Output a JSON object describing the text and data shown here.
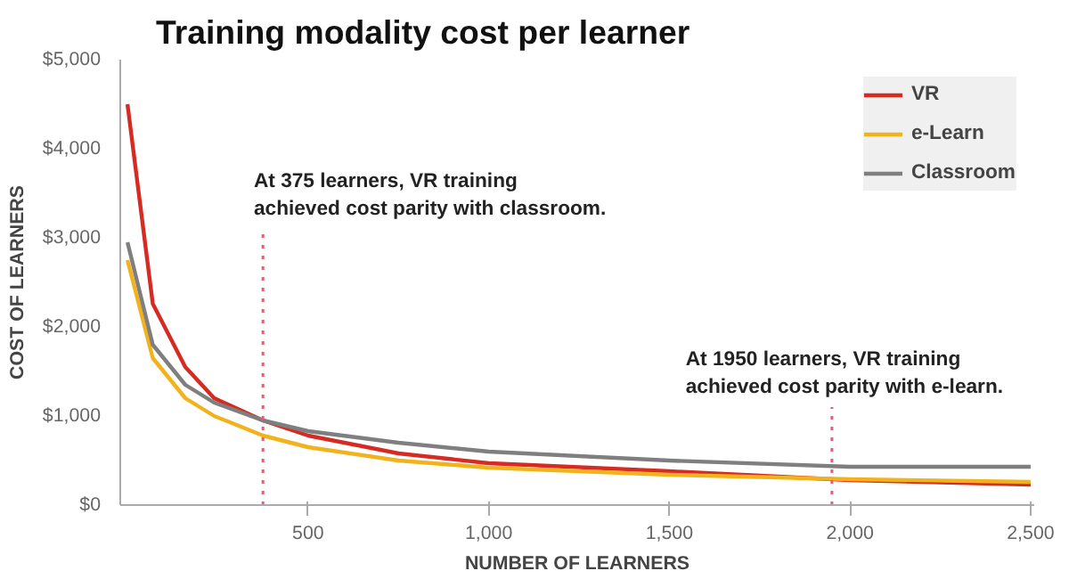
{
  "chart_data": {
    "type": "line",
    "title": "Training modality cost per learner",
    "xlabel": "NUMBER OF LEARNERS",
    "ylabel": "COST OF LEARNERS",
    "xlim": [
      -20,
      2510
    ],
    "xticks": [
      500,
      {
        "value": 1000,
        "label": "1,000"
      },
      {
        "value": 1500,
        "label": "1,500"
      },
      {
        "value": 2000,
        "label": "2,000"
      },
      {
        "value": 2500,
        "label": "2,500"
      }
    ],
    "ylim": [
      0,
      5000
    ],
    "yticks": [
      {
        "value": 0,
        "label": "$0"
      },
      {
        "value": 1000,
        "label": "$1,000"
      },
      {
        "value": 2000,
        "label": "$2,000"
      },
      {
        "value": 3000,
        "label": "$3,000"
      },
      {
        "value": 4000,
        "label": "$4,000"
      },
      {
        "value": 5000,
        "label": "$5,000"
      }
    ],
    "x": [
      0,
      70,
      160,
      240,
      375,
      500,
      750,
      1000,
      1500,
      2000,
      2500
    ],
    "series": [
      {
        "name": "VR",
        "color": "#d62b22",
        "values": [
          4500,
          2260,
          1550,
          1200,
          950,
          780,
          580,
          470,
          380,
          280,
          230
        ]
      },
      {
        "name": "e-Learn",
        "color": "#f2b21c",
        "values": [
          2750,
          1650,
          1200,
          1000,
          780,
          650,
          500,
          420,
          340,
          290,
          260
        ]
      },
      {
        "name": "Classroom",
        "color": "#7f7f7f",
        "values": [
          2950,
          1800,
          1350,
          1150,
          950,
          830,
          700,
          600,
          500,
          430,
          430
        ]
      }
    ],
    "ref_lines": [
      {
        "axis": "x",
        "value": 375,
        "color": "#e0607a",
        "line_style": "dotted"
      },
      {
        "axis": "x",
        "value": 1950,
        "color": "#e0607a",
        "line_style": "dotted"
      }
    ],
    "annotations": [
      "At 375 learners, VR training achieved cost parity with classroom.",
      "At 1950 learners, VR training achieved cost parity with e-learn."
    ],
    "legend": "top right",
    "grid": false,
    "marker": "none",
    "line_style": "solid"
  }
}
